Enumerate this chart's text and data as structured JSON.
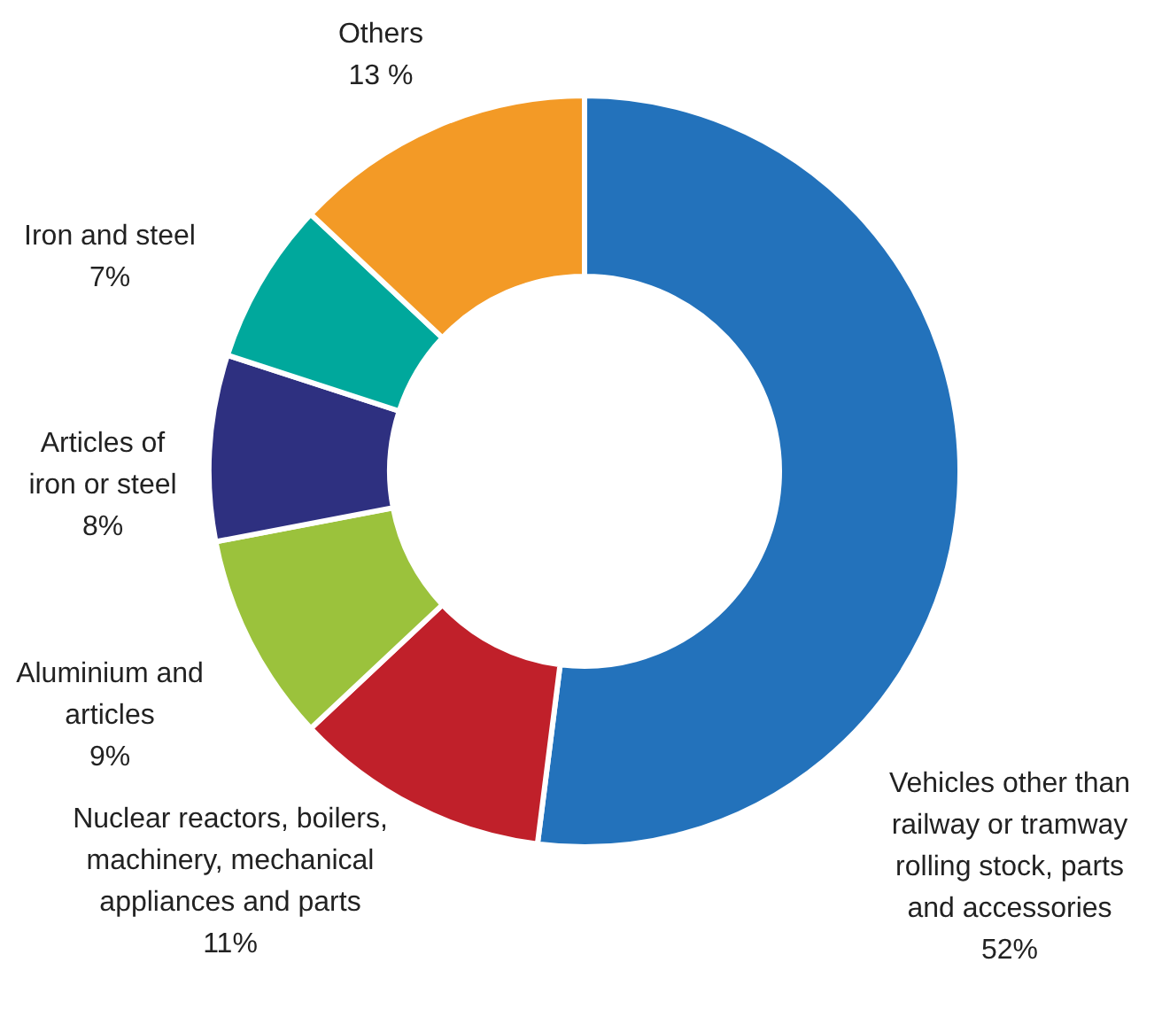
{
  "chart_data": {
    "type": "donut",
    "categories": [
      "Vehicles other than railway or tramway rolling stock, parts and accessories",
      "Nuclear reactors, boilers, machinery, mechanical appliances and parts",
      "Aluminium and articles",
      "Articles of iron or steel",
      "Iron and steel",
      "Others"
    ],
    "values": [
      52,
      11,
      9,
      8,
      7,
      13
    ],
    "value_labels": [
      "52%",
      "11%",
      "9%",
      "8%",
      "7%",
      "13 %"
    ],
    "colors": [
      "#2372bb",
      "#c0202a",
      "#9bc23c",
      "#2e3080",
      "#00a89c",
      "#f39a26"
    ]
  }
}
